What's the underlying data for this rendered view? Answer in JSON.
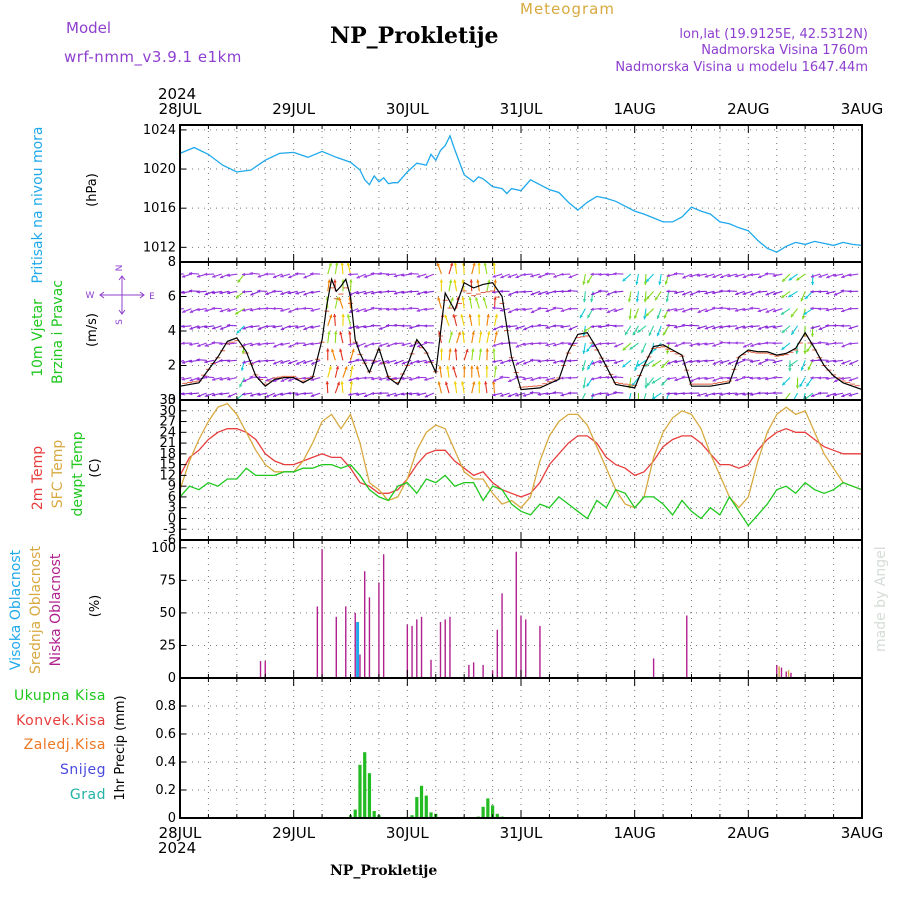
{
  "header": {
    "model_label": "Model",
    "model_name": "wrf-nmm_v3.9.1 e1km",
    "title": "NP_Prokletije",
    "meteogram_label": "Meteogram",
    "lonlat": "lon,lat (19.9125E, 42.5312N)",
    "elevation": "Nadmorska Visina 1760m",
    "model_elevation": "Nadmorska Visina u modelu 1647.44m",
    "footer_title": "NP_Prokletije",
    "watermark": "made by Angel"
  },
  "time_axis": {
    "year": "2024",
    "tick_labels": [
      "28JUL",
      "29JUL",
      "30JUL",
      "31JUL",
      "1AUG",
      "2AUG",
      "3AUG"
    ],
    "x_unit": "hours since 28JUL 00UTC",
    "range": [
      0,
      144
    ]
  },
  "colors": {
    "pressure": "#1fa9ec",
    "wind_speed": "#000000",
    "temp2m": "#e83d3d",
    "sfc_temp": "#d8a940",
    "dewpoint": "#1ec81e",
    "high_cloud": "#1fa9ec",
    "mid_cloud": "#d8a940",
    "low_cloud": "#b0208e",
    "total_precip": "#22bb22",
    "conv_precip": "#e83d3d",
    "frozen_precip": "#ee7722",
    "snow": "#4a4ae0",
    "hail": "#22b3a6",
    "side_labels": "#8e3fcf"
  },
  "chart_data": [
    {
      "type": "line",
      "name": "pressure",
      "side_label": "Pritisak na nivou mora",
      "unit": "(hPa)",
      "ylim": [
        1010.5,
        1024.5
      ],
      "yticks": [
        1012,
        1016,
        1020,
        1024
      ],
      "grid": true,
      "x": [
        0,
        3,
        6,
        9,
        12,
        15,
        18,
        21,
        24,
        27,
        30,
        33,
        36,
        38,
        39,
        40,
        41,
        42,
        43,
        44,
        45,
        46,
        48,
        50,
        52,
        53,
        54,
        55,
        56,
        57,
        58,
        60,
        62,
        63,
        64,
        66,
        68,
        69,
        70,
        72,
        74,
        76,
        78,
        80,
        82,
        84,
        86,
        88,
        90,
        92,
        94,
        96,
        98,
        100,
        102,
        104,
        106,
        108,
        110,
        112,
        114,
        116,
        118,
        120,
        122,
        124,
        126,
        128,
        130,
        132,
        134,
        136,
        138,
        140,
        142,
        144
      ],
      "values": [
        1021.6,
        1022.2,
        1021.5,
        1020.4,
        1019.7,
        1019.9,
        1020.9,
        1021.6,
        1021.7,
        1021.2,
        1021.8,
        1021.2,
        1020.7,
        1019.9,
        1018.9,
        1018.4,
        1019.3,
        1018.7,
        1019.1,
        1018.5,
        1018.6,
        1018.6,
        1019.7,
        1020.6,
        1020.4,
        1021.5,
        1020.9,
        1021.9,
        1022.4,
        1023.4,
        1022.0,
        1019.4,
        1018.7,
        1019.2,
        1019.0,
        1018.2,
        1018.0,
        1017.5,
        1018.0,
        1017.8,
        1018.9,
        1018.4,
        1017.9,
        1017.6,
        1016.6,
        1015.8,
        1016.6,
        1017.2,
        1017.0,
        1016.7,
        1016.2,
        1015.7,
        1015.4,
        1015.0,
        1014.6,
        1014.6,
        1015.1,
        1016.1,
        1015.7,
        1015.4,
        1014.6,
        1014.4,
        1014.0,
        1013.7,
        1012.7,
        1011.9,
        1011.5,
        1012.1,
        1012.5,
        1012.3,
        1012.6,
        1012.4,
        1012.2,
        1012.5,
        1012.3,
        1012.2
      ]
    },
    {
      "type": "line",
      "name": "wind",
      "side_label_1": "10m Vjetar",
      "side_label_2": "Brzina i Pravac",
      "unit": "(m/s)",
      "compass": [
        "N",
        "E",
        "W",
        "S"
      ],
      "ylim": [
        0,
        8
      ],
      "yticks": [
        0,
        2,
        4,
        6,
        8
      ],
      "grid": true,
      "x": [
        0,
        4,
        8,
        10,
        12,
        14,
        16,
        18,
        20,
        22,
        24,
        26,
        28,
        30,
        31,
        32,
        33,
        34,
        35,
        36,
        37,
        38,
        40,
        42,
        44,
        46,
        48,
        50,
        52,
        54,
        56,
        58,
        60,
        62,
        64,
        66,
        68,
        70,
        72,
        76,
        80,
        82,
        84,
        86,
        88,
        92,
        96,
        98,
        100,
        102,
        104,
        106,
        108,
        112,
        116,
        118,
        120,
        122,
        124,
        126,
        128,
        130,
        132,
        134,
        136,
        138,
        140,
        144
      ],
      "values": [
        0.8,
        1.0,
        2.5,
        3.4,
        3.6,
        2.8,
        1.4,
        0.8,
        1.2,
        1.3,
        1.3,
        1.0,
        1.3,
        3.5,
        5.5,
        7.0,
        6.3,
        6.6,
        7.0,
        6.0,
        3.5,
        2.7,
        1.6,
        3.0,
        1.3,
        0.9,
        2.0,
        3.5,
        2.8,
        1.6,
        6.2,
        5.2,
        6.8,
        6.5,
        6.7,
        6.8,
        6.0,
        2.5,
        0.6,
        0.7,
        1.2,
        2.8,
        3.8,
        3.9,
        3.0,
        0.9,
        0.7,
        2.0,
        3.1,
        3.2,
        2.9,
        2.6,
        0.8,
        0.8,
        1.0,
        2.5,
        2.9,
        2.8,
        2.8,
        2.6,
        2.7,
        3.0,
        3.9,
        3.0,
        2.0,
        1.4,
        1.0,
        0.6
      ],
      "wind_colored_speed_bands": [
        {
          "from": 12,
          "to": 14,
          "level": "mid"
        },
        {
          "from": 30,
          "to": 37,
          "level": "strong"
        },
        {
          "from": 55,
          "to": 67,
          "level": "strong"
        },
        {
          "from": 84,
          "to": 88,
          "level": "mid"
        },
        {
          "from": 94,
          "to": 104,
          "level": "mid"
        },
        {
          "from": 128,
          "to": 134,
          "level": "mid"
        }
      ]
    },
    {
      "type": "line",
      "name": "temperature",
      "side_label_1": "2m Temp",
      "side_label_2": "SFC Temp",
      "side_label_3": "dewpt Temp",
      "unit": "(C)",
      "ylim": [
        -6,
        33
      ],
      "yticks": [
        -6,
        -3,
        0,
        3,
        6,
        9,
        12,
        15,
        18,
        21,
        24,
        27,
        30,
        33
      ],
      "grid": true,
      "series": [
        {
          "name": "2m Temp",
          "x": [
            0,
            2,
            4,
            6,
            8,
            10,
            12,
            14,
            16,
            18,
            20,
            22,
            24,
            26,
            28,
            30,
            32,
            34,
            36,
            38,
            40,
            42,
            44,
            46,
            48,
            50,
            52,
            54,
            56,
            58,
            60,
            62,
            64,
            66,
            68,
            70,
            72,
            74,
            76,
            78,
            80,
            82,
            84,
            86,
            88,
            90,
            92,
            94,
            96,
            98,
            100,
            102,
            104,
            106,
            108,
            110,
            112,
            114,
            116,
            118,
            120,
            122,
            124,
            126,
            128,
            130,
            132,
            134,
            136,
            138,
            140,
            142,
            144
          ],
          "values": [
            12,
            17,
            19,
            22,
            24,
            25,
            25,
            24,
            22,
            18,
            16,
            15,
            15,
            16,
            17,
            18,
            17,
            17,
            14,
            10,
            9,
            7,
            7,
            8,
            11,
            15,
            18,
            19,
            19,
            16,
            14,
            12,
            13,
            10,
            8,
            7,
            6,
            7,
            10,
            15,
            18,
            21,
            23,
            23,
            21,
            17,
            15,
            14,
            12,
            13,
            16,
            20,
            22,
            23,
            23,
            21,
            18,
            15,
            15,
            14,
            15,
            19,
            22,
            24,
            25,
            24,
            24,
            22,
            20,
            19,
            18,
            18,
            18
          ]
        },
        {
          "name": "SFC Temp",
          "x": [
            0,
            2,
            4,
            6,
            8,
            10,
            12,
            14,
            16,
            18,
            20,
            22,
            24,
            26,
            28,
            30,
            32,
            34,
            36,
            38,
            40,
            42,
            44,
            46,
            48,
            50,
            52,
            54,
            56,
            58,
            60,
            62,
            64,
            66,
            68,
            70,
            72,
            74,
            76,
            78,
            80,
            82,
            84,
            86,
            88,
            90,
            92,
            94,
            96,
            98,
            100,
            102,
            104,
            106,
            108,
            110,
            112,
            114,
            116,
            118,
            120,
            122,
            124,
            126,
            128,
            130,
            132,
            134,
            136,
            138,
            140,
            142,
            144
          ],
          "values": [
            8,
            16,
            22,
            27,
            31,
            32,
            29,
            24,
            19,
            15,
            13,
            13,
            13,
            16,
            21,
            27,
            29,
            25,
            29,
            21,
            10,
            8,
            5,
            6,
            11,
            19,
            24,
            26,
            25,
            19,
            13,
            11,
            11,
            7,
            4,
            5,
            3,
            6,
            16,
            23,
            27,
            29,
            29,
            26,
            20,
            14,
            8,
            4,
            3,
            6,
            17,
            24,
            28,
            30,
            29,
            25,
            18,
            12,
            6,
            3,
            6,
            16,
            24,
            29,
            31,
            29,
            30,
            24,
            18,
            14,
            10,
            9,
            8
          ]
        },
        {
          "name": "dewpt Temp",
          "x": [
            0,
            2,
            4,
            6,
            8,
            10,
            12,
            14,
            16,
            18,
            20,
            22,
            24,
            26,
            28,
            30,
            32,
            34,
            36,
            38,
            40,
            42,
            44,
            46,
            48,
            50,
            52,
            54,
            56,
            58,
            60,
            62,
            64,
            66,
            68,
            70,
            72,
            74,
            76,
            78,
            80,
            82,
            84,
            86,
            88,
            90,
            92,
            94,
            96,
            98,
            100,
            102,
            104,
            106,
            108,
            110,
            112,
            114,
            116,
            118,
            120,
            122,
            124,
            126,
            128,
            130,
            132,
            134,
            136,
            138,
            140,
            142,
            144
          ],
          "values": [
            6,
            9,
            8,
            10,
            9,
            11,
            11,
            14,
            12,
            12,
            12,
            13,
            13,
            14,
            14,
            15,
            15,
            14,
            15,
            12,
            8,
            6,
            5,
            9,
            10,
            7,
            11,
            10,
            12,
            9,
            10,
            10,
            5,
            9,
            8,
            4,
            2,
            1,
            4,
            3,
            6,
            4,
            2,
            0,
            5,
            3,
            8,
            7,
            3,
            6,
            6,
            4,
            1,
            5,
            2,
            0,
            3,
            1,
            6,
            2,
            -2,
            1,
            4,
            8,
            9,
            7,
            10,
            8,
            7,
            8,
            10,
            9,
            8
          ]
        }
      ]
    },
    {
      "type": "bar",
      "name": "cloud",
      "side_label_1": "Visoka Oblacnost",
      "side_label_2": "Srednja Oblacnost",
      "side_label_3": "Niska Oblacnost",
      "unit": "(%)",
      "ylim": [
        0,
        100
      ],
      "yticks": [
        0,
        25,
        50,
        75,
        100
      ],
      "grid": true,
      "series": [
        {
          "name": "Niska Oblacnost",
          "x": [
            17,
            18,
            29,
            30,
            33,
            35,
            37,
            38,
            39,
            40,
            42,
            43,
            48,
            49,
            50,
            51,
            53,
            55,
            56,
            57,
            61,
            62,
            64,
            66,
            67,
            68,
            71,
            72,
            73,
            76,
            100,
            107,
            126,
            127,
            128,
            129
          ],
          "values": [
            13,
            13,
            55,
            99,
            47,
            55,
            50,
            18,
            82,
            62,
            73,
            95,
            41,
            40,
            45,
            47,
            14,
            43,
            45,
            47,
            10,
            12,
            10,
            6,
            37,
            65,
            97,
            48,
            45,
            40,
            15,
            48,
            10,
            8,
            5,
            4
          ]
        },
        {
          "name": "Visoka Oblacnost",
          "x": [
            37.5
          ],
          "values": [
            43
          ]
        },
        {
          "name": "Srednja Oblacnost",
          "x": [
            126.5,
            128.5
          ],
          "values": [
            9,
            6
          ]
        }
      ]
    },
    {
      "type": "bar",
      "name": "precip",
      "side_label_1": "Ukupna Kisa",
      "side_label_2": "Konvek.Kisa",
      "side_label_3": "Zaledj.Kisa",
      "side_label_4": "Snijeg",
      "side_label_5": "Grad",
      "unit": "1hr Precip (mm)",
      "ylim": [
        0,
        1
      ],
      "yticks": [
        0,
        0.2,
        0.4,
        0.6,
        0.8
      ],
      "grid": true,
      "series": [
        {
          "name": "Ukupna Kisa",
          "x": [
            36,
            37,
            38,
            39,
            40,
            41,
            42,
            49,
            50,
            51,
            52,
            53,
            54,
            63,
            64,
            65,
            66,
            67,
            68
          ],
          "values": [
            0.02,
            0.06,
            0.38,
            0.47,
            0.32,
            0.05,
            0.02,
            0.02,
            0.15,
            0.23,
            0.16,
            0.04,
            0.03,
            0.01,
            0.08,
            0.14,
            0.09,
            0.03,
            0.01
          ]
        }
      ]
    }
  ]
}
